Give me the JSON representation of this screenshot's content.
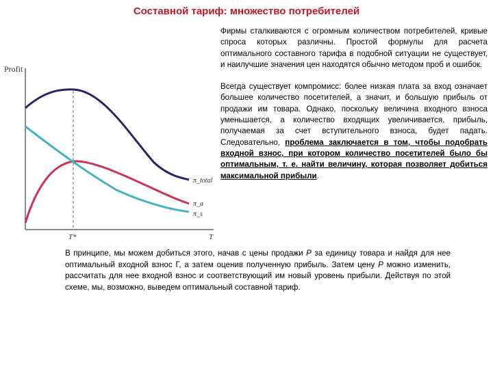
{
  "title": "Составной тариф: множество потребителей",
  "paragraph1": "Фирмы сталкиваются с огромным количеством потребителей, кривые спроса которых различны. Простой формулы для расчета оптимального составного тарифа в подобной ситуации не существует, и наилучшие значения цен находятся обычно методом проб и ошибок.",
  "paragraph2": {
    "intro": "Всегда существует компромисс: более низкая плата за вход означает большее количество посетителей, а значит, и большую прибыль от продажи им товара. Однако, поскольку величина входного взноса уменьшается, а количество входящих увеличивается, прибыль, получаемая за счет вступительного взноса, будет падать. Следовательно, ",
    "emphasis": "проблема заключается в том, чтобы подобрать входной взнос, при котором количество посетителей было бы оптимальным, т. е. найти величину, которая позволяет добиться максимальной прибыли",
    "end": "."
  },
  "paragraph3": {
    "part1": "В принципе, мы можем добиться этого, начав с цены продажи ",
    "var_p1": "P",
    "part2": " за единицу товара и найдя для нее оптимальный входной взнос Г, а затем оценив полученную прибыль. Затем цену ",
    "var_p2": "P",
    "part3": " можно изменить, рассчитать для нее входной взнос и соответствующий им новый уровень прибыли. Действуя по этой схеме, мы, возможно, выведем оптимальный составной тариф."
  },
  "chart_data": {
    "type": "line",
    "ylabel": "Profit",
    "xlabel": "T",
    "x_marker": "T*",
    "curve_labels": [
      "π_total",
      "π_a",
      "π_s"
    ],
    "colors": {
      "total": "#262462",
      "a": "#cc3355",
      "s": "#44b2c0",
      "axis": "#444444",
      "title": "#c0182a"
    }
  }
}
